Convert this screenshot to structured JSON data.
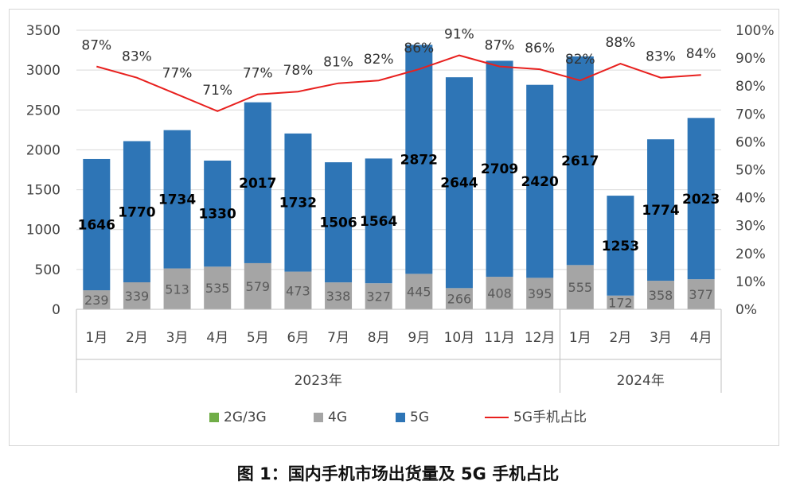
{
  "caption": "图 1：国内手机市场出货量及 5G 手机占比",
  "colors": {
    "c2g3g": "#70ad47",
    "c4g": "#a5a5a5",
    "c5g": "#2e75b6",
    "share": "#e8201e",
    "grid": "#d9d9d9",
    "axis": "#bfbfbf"
  },
  "chart_data": {
    "type": "bar",
    "stacked": true,
    "title": "",
    "categories": [
      "1月",
      "2月",
      "3月",
      "4月",
      "5月",
      "6月",
      "7月",
      "8月",
      "9月",
      "10月",
      "11月",
      "12月",
      "1月",
      "2月",
      "3月",
      "4月"
    ],
    "groups": [
      {
        "label": "2023年",
        "start": 0,
        "count": 12
      },
      {
        "label": "2024年",
        "start": 12,
        "count": 4
      }
    ],
    "series": [
      {
        "name": "2G/3G",
        "color_key": "c2g3g",
        "values": [
          0,
          0,
          0,
          0,
          0,
          0,
          0,
          0,
          0,
          0,
          0,
          0,
          0,
          0,
          0,
          0
        ]
      },
      {
        "name": "4G",
        "color_key": "c4g",
        "values": [
          239,
          339,
          513,
          535,
          579,
          473,
          338,
          327,
          445,
          266,
          408,
          395,
          555,
          172,
          358,
          377
        ]
      },
      {
        "name": "5G",
        "color_key": "c5g",
        "values": [
          1646,
          1770,
          1734,
          1330,
          2017,
          1732,
          1506,
          1564,
          2872,
          2644,
          2709,
          2420,
          2617,
          1253,
          1774,
          2023
        ]
      }
    ],
    "line_series": {
      "name": "5G手机占比",
      "axis": "secondary",
      "values": [
        87,
        83,
        77,
        71,
        77,
        78,
        81,
        82,
        86,
        91,
        87,
        86,
        82,
        88,
        83,
        84
      ],
      "labels": [
        "87%",
        "83%",
        "77%",
        "71%",
        "77%",
        "78%",
        "81%",
        "82%",
        "86%",
        "91%",
        "87%",
        "86%",
        "82%",
        "88%",
        "83%",
        "84%"
      ]
    },
    "y_left": {
      "min": 0,
      "max": 3500,
      "ticks": [
        "0",
        "500",
        "1000",
        "1500",
        "2000",
        "2500",
        "3000",
        "3500"
      ]
    },
    "y_right": {
      "min": 0,
      "max": 100,
      "ticks": [
        "0%",
        "10%",
        "20%",
        "30%",
        "40%",
        "50%",
        "60%",
        "70%",
        "80%",
        "90%",
        "100%"
      ]
    },
    "gridlines": true,
    "legend_position": "bottom",
    "legend": [
      "2G/3G",
      "4G",
      "5G",
      "5G手机占比"
    ]
  }
}
